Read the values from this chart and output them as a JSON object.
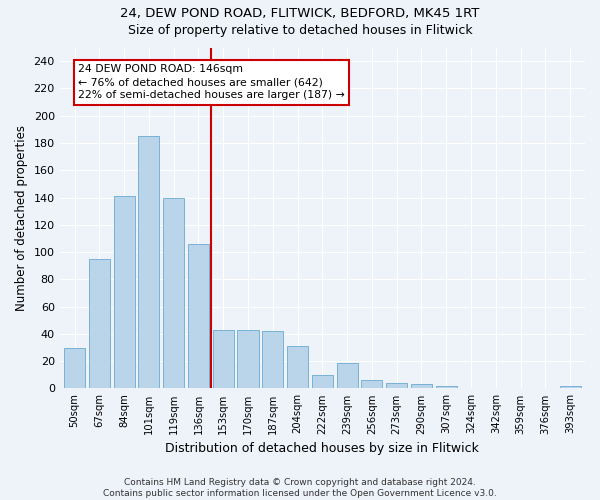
{
  "title1": "24, DEW POND ROAD, FLITWICK, BEDFORD, MK45 1RT",
  "title2": "Size of property relative to detached houses in Flitwick",
  "xlabel": "Distribution of detached houses by size in Flitwick",
  "ylabel": "Number of detached properties",
  "bar_labels": [
    "50sqm",
    "67sqm",
    "84sqm",
    "101sqm",
    "119sqm",
    "136sqm",
    "153sqm",
    "170sqm",
    "187sqm",
    "204sqm",
    "222sqm",
    "239sqm",
    "256sqm",
    "273sqm",
    "290sqm",
    "307sqm",
    "324sqm",
    "342sqm",
    "359sqm",
    "376sqm",
    "393sqm"
  ],
  "bar_values": [
    30,
    95,
    141,
    185,
    140,
    106,
    43,
    43,
    42,
    31,
    10,
    19,
    6,
    4,
    3,
    2,
    0,
    0,
    0,
    0,
    2
  ],
  "bar_color": "#bad4ea",
  "bar_edge_color": "#6aaad4",
  "vline_x": 6.0,
  "vline_color": "#cc0000",
  "annotation_text": "24 DEW POND ROAD: 146sqm\n← 76% of detached houses are smaller (642)\n22% of semi-detached houses are larger (187) →",
  "annotation_box_color": "#ffffff",
  "annotation_box_edge_color": "#cc0000",
  "ylim": [
    0,
    250
  ],
  "yticks": [
    0,
    20,
    40,
    60,
    80,
    100,
    120,
    140,
    160,
    180,
    200,
    220,
    240
  ],
  "footer_text": "Contains HM Land Registry data © Crown copyright and database right 2024.\nContains public sector information licensed under the Open Government Licence v3.0.",
  "bg_color": "#eef2f9",
  "grid_color": "#ffffff"
}
